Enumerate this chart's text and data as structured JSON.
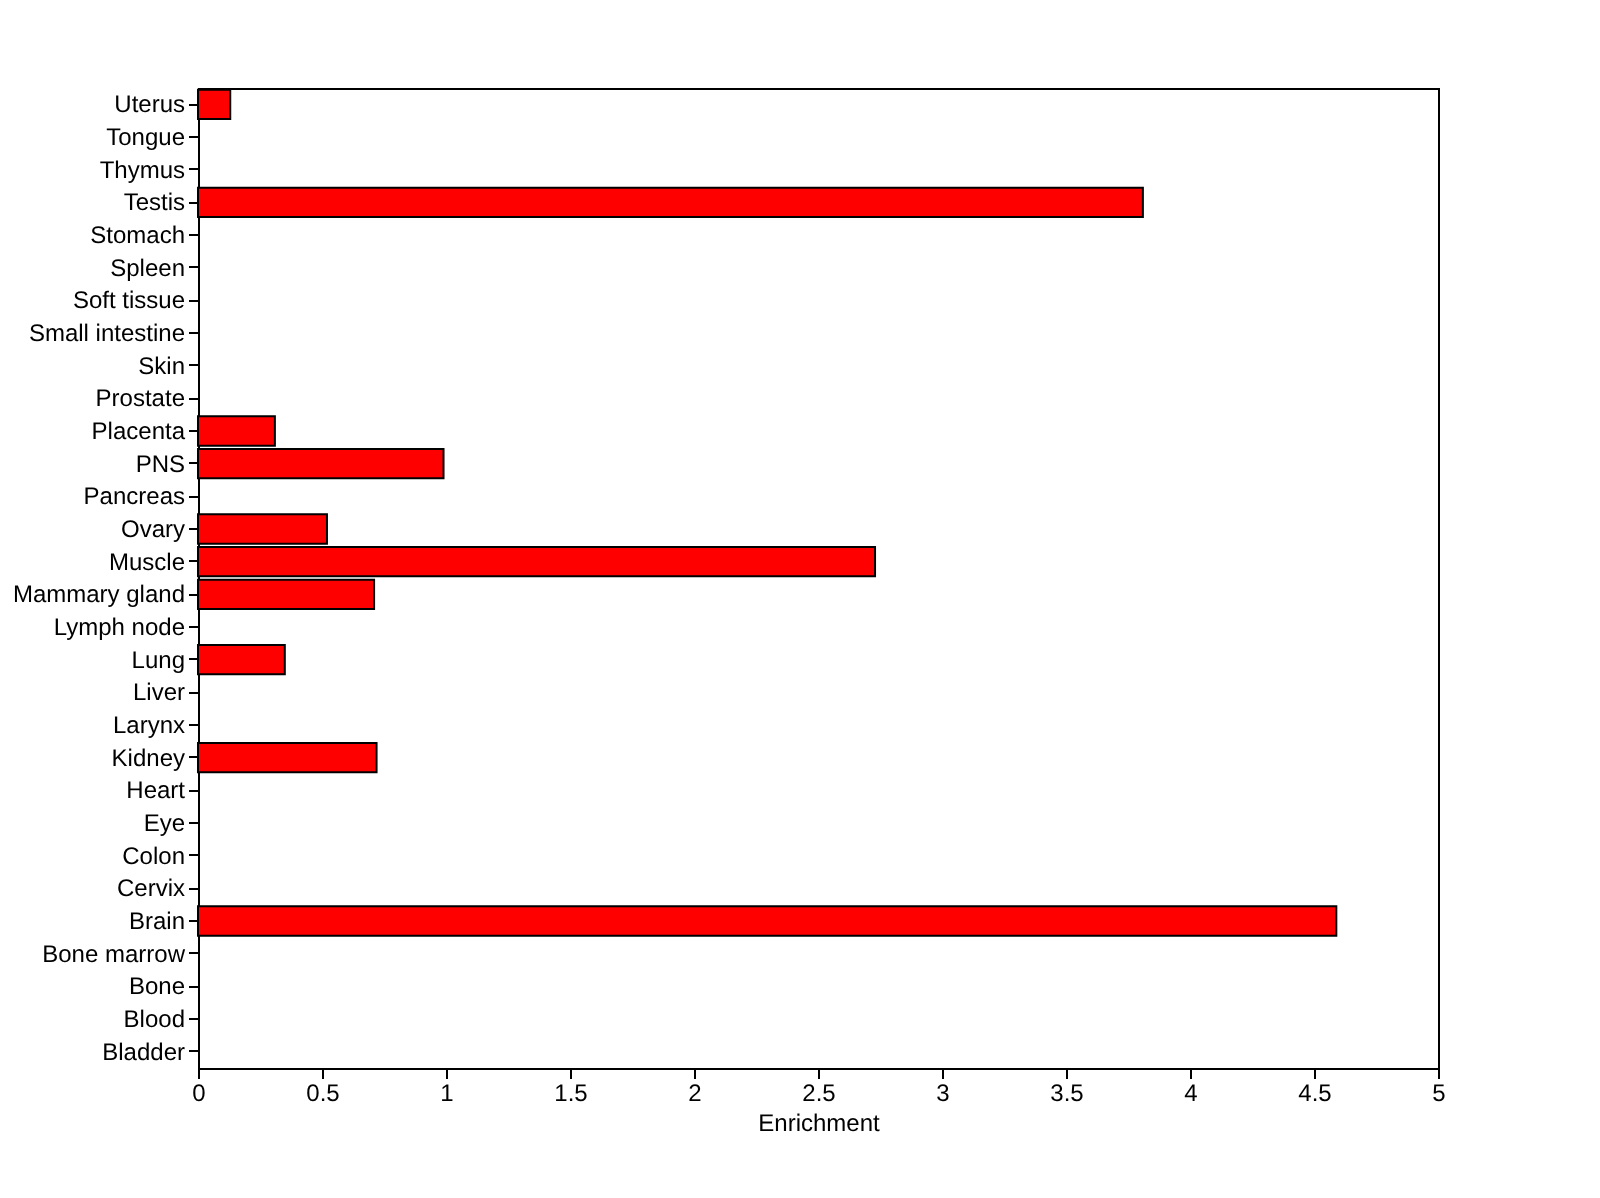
{
  "chart_data": {
    "type": "bar",
    "orientation": "horizontal",
    "xlabel": "Enrichment",
    "categories": [
      "Uterus",
      "Tongue",
      "Thymus",
      "Testis",
      "Stomach",
      "Spleen",
      "Soft tissue",
      "Small intestine",
      "Skin",
      "Prostate",
      "Placenta",
      "PNS",
      "Pancreas",
      "Ovary",
      "Muscle",
      "Mammary gland",
      "Lymph node",
      "Lung",
      "Liver",
      "Larynx",
      "Kidney",
      "Heart",
      "Eye",
      "Colon",
      "Cervix",
      "Brain",
      "Bone marrow",
      "Bone",
      "Blood",
      "Bladder"
    ],
    "values": [
      0.13,
      0,
      0,
      3.81,
      0,
      0,
      0,
      0,
      0,
      0,
      0.31,
      0.99,
      0,
      0.52,
      2.73,
      0.71,
      0,
      0.35,
      0,
      0,
      0.72,
      0,
      0,
      0,
      0,
      4.59,
      0,
      0,
      0,
      0
    ],
    "color": "#ff0000",
    "xlim": [
      0,
      5
    ],
    "xticks": [
      0,
      0.5,
      1,
      1.5,
      2,
      2.5,
      3,
      3.5,
      4,
      4.5,
      5
    ],
    "grid": false
  }
}
